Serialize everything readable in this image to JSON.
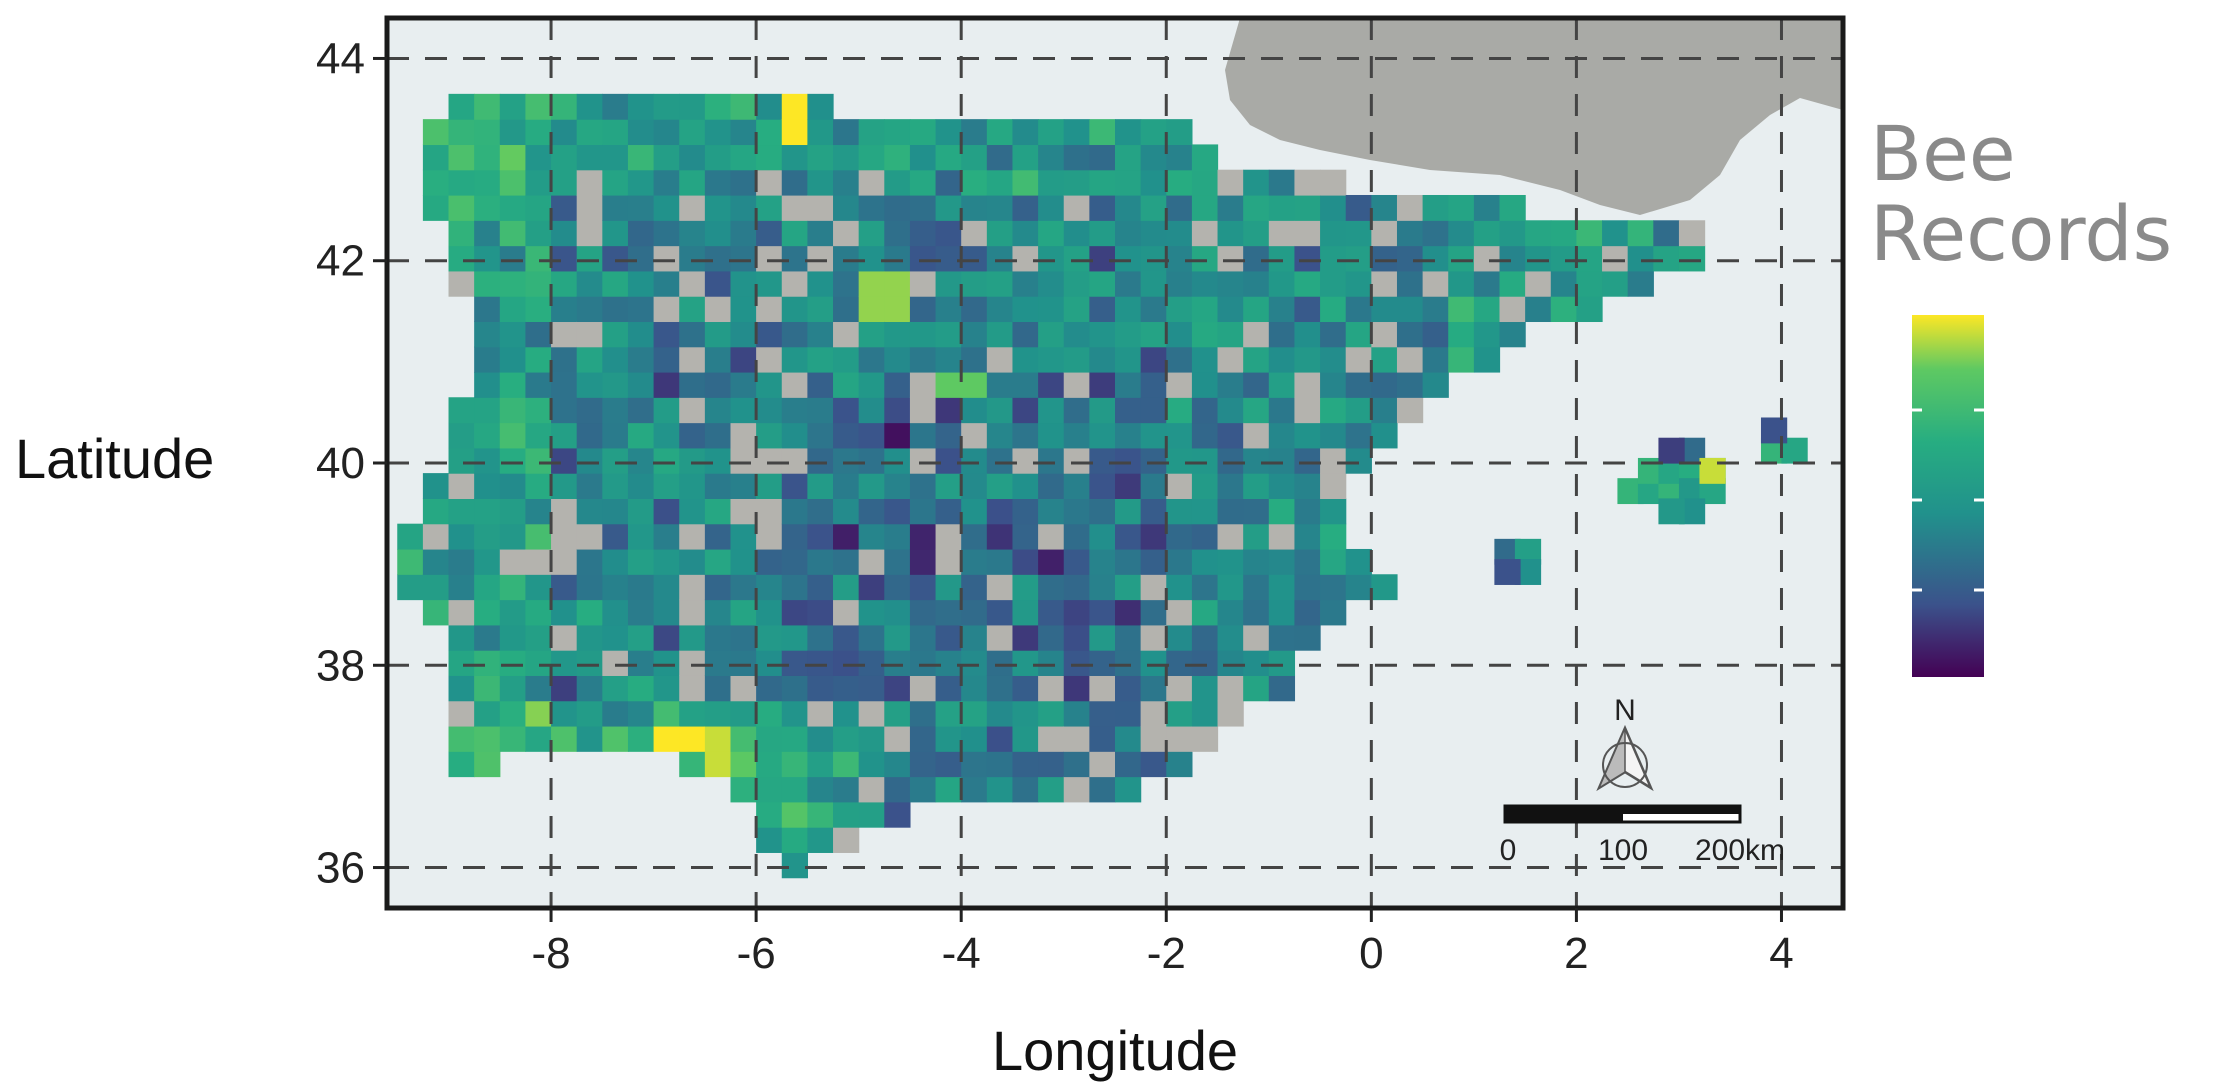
{
  "axes": {
    "xlabel": "Longitude",
    "ylabel": "Latitude",
    "x_ticks": [
      "-8",
      "-6",
      "-4",
      "-2",
      "0",
      "2",
      "4"
    ],
    "y_ticks": [
      "44",
      "42",
      "40",
      "38",
      "36"
    ],
    "xlim": [
      -9.6,
      4.6
    ],
    "ylim": [
      35.6,
      44.4
    ],
    "grid": "dashed"
  },
  "legend": {
    "title_line1": "Bee",
    "title_line2": "Records",
    "colormap": [
      "#440154",
      "#3b528b",
      "#21918c",
      "#27ad81",
      "#5ec962",
      "#fde725"
    ],
    "placement": "right"
  },
  "scale_bar": {
    "labels": [
      "0",
      "100",
      "200km"
    ],
    "north_label": "N"
  },
  "colors": {
    "sea": "#e8eef0",
    "france": "#a9aaa6",
    "no_data": "#b4b3ae",
    "frame": "#1a1a1a"
  },
  "chart_data": {
    "type": "heatmap",
    "description_units": "grid cells ~0.25 degree; value = relative bee record count on viridis scale (0 low .. 1 high)",
    "cell_size_deg": 0.25,
    "peninsula_outline": [
      [
        -9.0,
        43.6
      ],
      [
        -8.4,
        43.6
      ],
      [
        -7.8,
        43.7
      ],
      [
        -7.0,
        43.6
      ],
      [
        -6.0,
        43.6
      ],
      [
        -5.0,
        43.5
      ],
      [
        -4.0,
        43.5
      ],
      [
        -3.0,
        43.5
      ],
      [
        -2.2,
        43.4
      ],
      [
        -1.8,
        43.3
      ],
      [
        -1.4,
        43.0
      ],
      [
        -0.5,
        42.8
      ],
      [
        0.5,
        42.7
      ],
      [
        1.5,
        42.5
      ],
      [
        2.3,
        42.4
      ],
      [
        3.1,
        42.4
      ],
      [
        3.4,
        42.1
      ],
      [
        3.0,
        41.9
      ],
      [
        2.2,
        41.5
      ],
      [
        1.4,
        41.2
      ],
      [
        0.8,
        40.8
      ],
      [
        0.4,
        40.4
      ],
      [
        -0.1,
        40.0
      ],
      [
        -0.3,
        39.5
      ],
      [
        0.2,
        38.8
      ],
      [
        -0.5,
        38.4
      ],
      [
        -0.8,
        37.8
      ],
      [
        -1.3,
        37.5
      ],
      [
        -1.9,
        37.0
      ],
      [
        -2.2,
        36.7
      ],
      [
        -3.0,
        36.7
      ],
      [
        -4.0,
        36.7
      ],
      [
        -4.7,
        36.5
      ],
      [
        -5.2,
        36.1
      ],
      [
        -5.7,
        36.0
      ],
      [
        -6.0,
        36.4
      ],
      [
        -6.3,
        36.8
      ],
      [
        -7.0,
        37.2
      ],
      [
        -7.5,
        37.2
      ],
      [
        -8.5,
        37.0
      ],
      [
        -9.0,
        37.0
      ],
      [
        -8.9,
        37.5
      ],
      [
        -8.9,
        38.2
      ],
      [
        -9.4,
        38.6
      ],
      [
        -9.4,
        39.3
      ],
      [
        -9.0,
        40.0
      ],
      [
        -8.8,
        41.0
      ],
      [
        -8.9,
        41.8
      ],
      [
        -9.2,
        42.5
      ],
      [
        -9.3,
        43.0
      ],
      [
        -9.0,
        43.6
      ]
    ],
    "balearic_cells": [
      [
        2.4,
        39.6,
        0.7
      ],
      [
        2.6,
        39.6,
        0.6
      ],
      [
        2.6,
        39.8,
        0.7
      ],
      [
        2.8,
        39.6,
        0.7
      ],
      [
        2.8,
        39.8,
        0.6
      ],
      [
        3.0,
        39.8,
        0.65
      ],
      [
        3.0,
        39.6,
        0.5
      ],
      [
        3.2,
        39.6,
        0.6
      ],
      [
        3.2,
        39.8,
        0.65
      ],
      [
        3.0,
        40.0,
        0.3
      ],
      [
        2.8,
        40.0,
        0.15
      ],
      [
        3.0,
        39.4,
        0.45
      ],
      [
        2.8,
        39.4,
        0.5
      ],
      [
        3.2,
        39.8,
        0.95
      ],
      [
        3.8,
        40.0,
        0.7
      ],
      [
        4.0,
        40.0,
        0.6
      ],
      [
        3.8,
        40.2,
        0.2
      ],
      [
        1.2,
        39.0,
        0.3
      ],
      [
        1.4,
        39.0,
        0.55
      ],
      [
        1.4,
        38.8,
        0.45
      ],
      [
        1.2,
        38.8,
        0.2
      ]
    ],
    "hotspots": [
      [
        -5.6,
        43.4,
        1.0
      ],
      [
        -4.8,
        41.7,
        0.9
      ],
      [
        -4.0,
        40.8,
        0.85
      ],
      [
        -6.7,
        37.3,
        1.0
      ],
      [
        -6.4,
        37.1,
        0.95
      ],
      [
        -7.4,
        37.3,
        0.8
      ]
    ]
  }
}
